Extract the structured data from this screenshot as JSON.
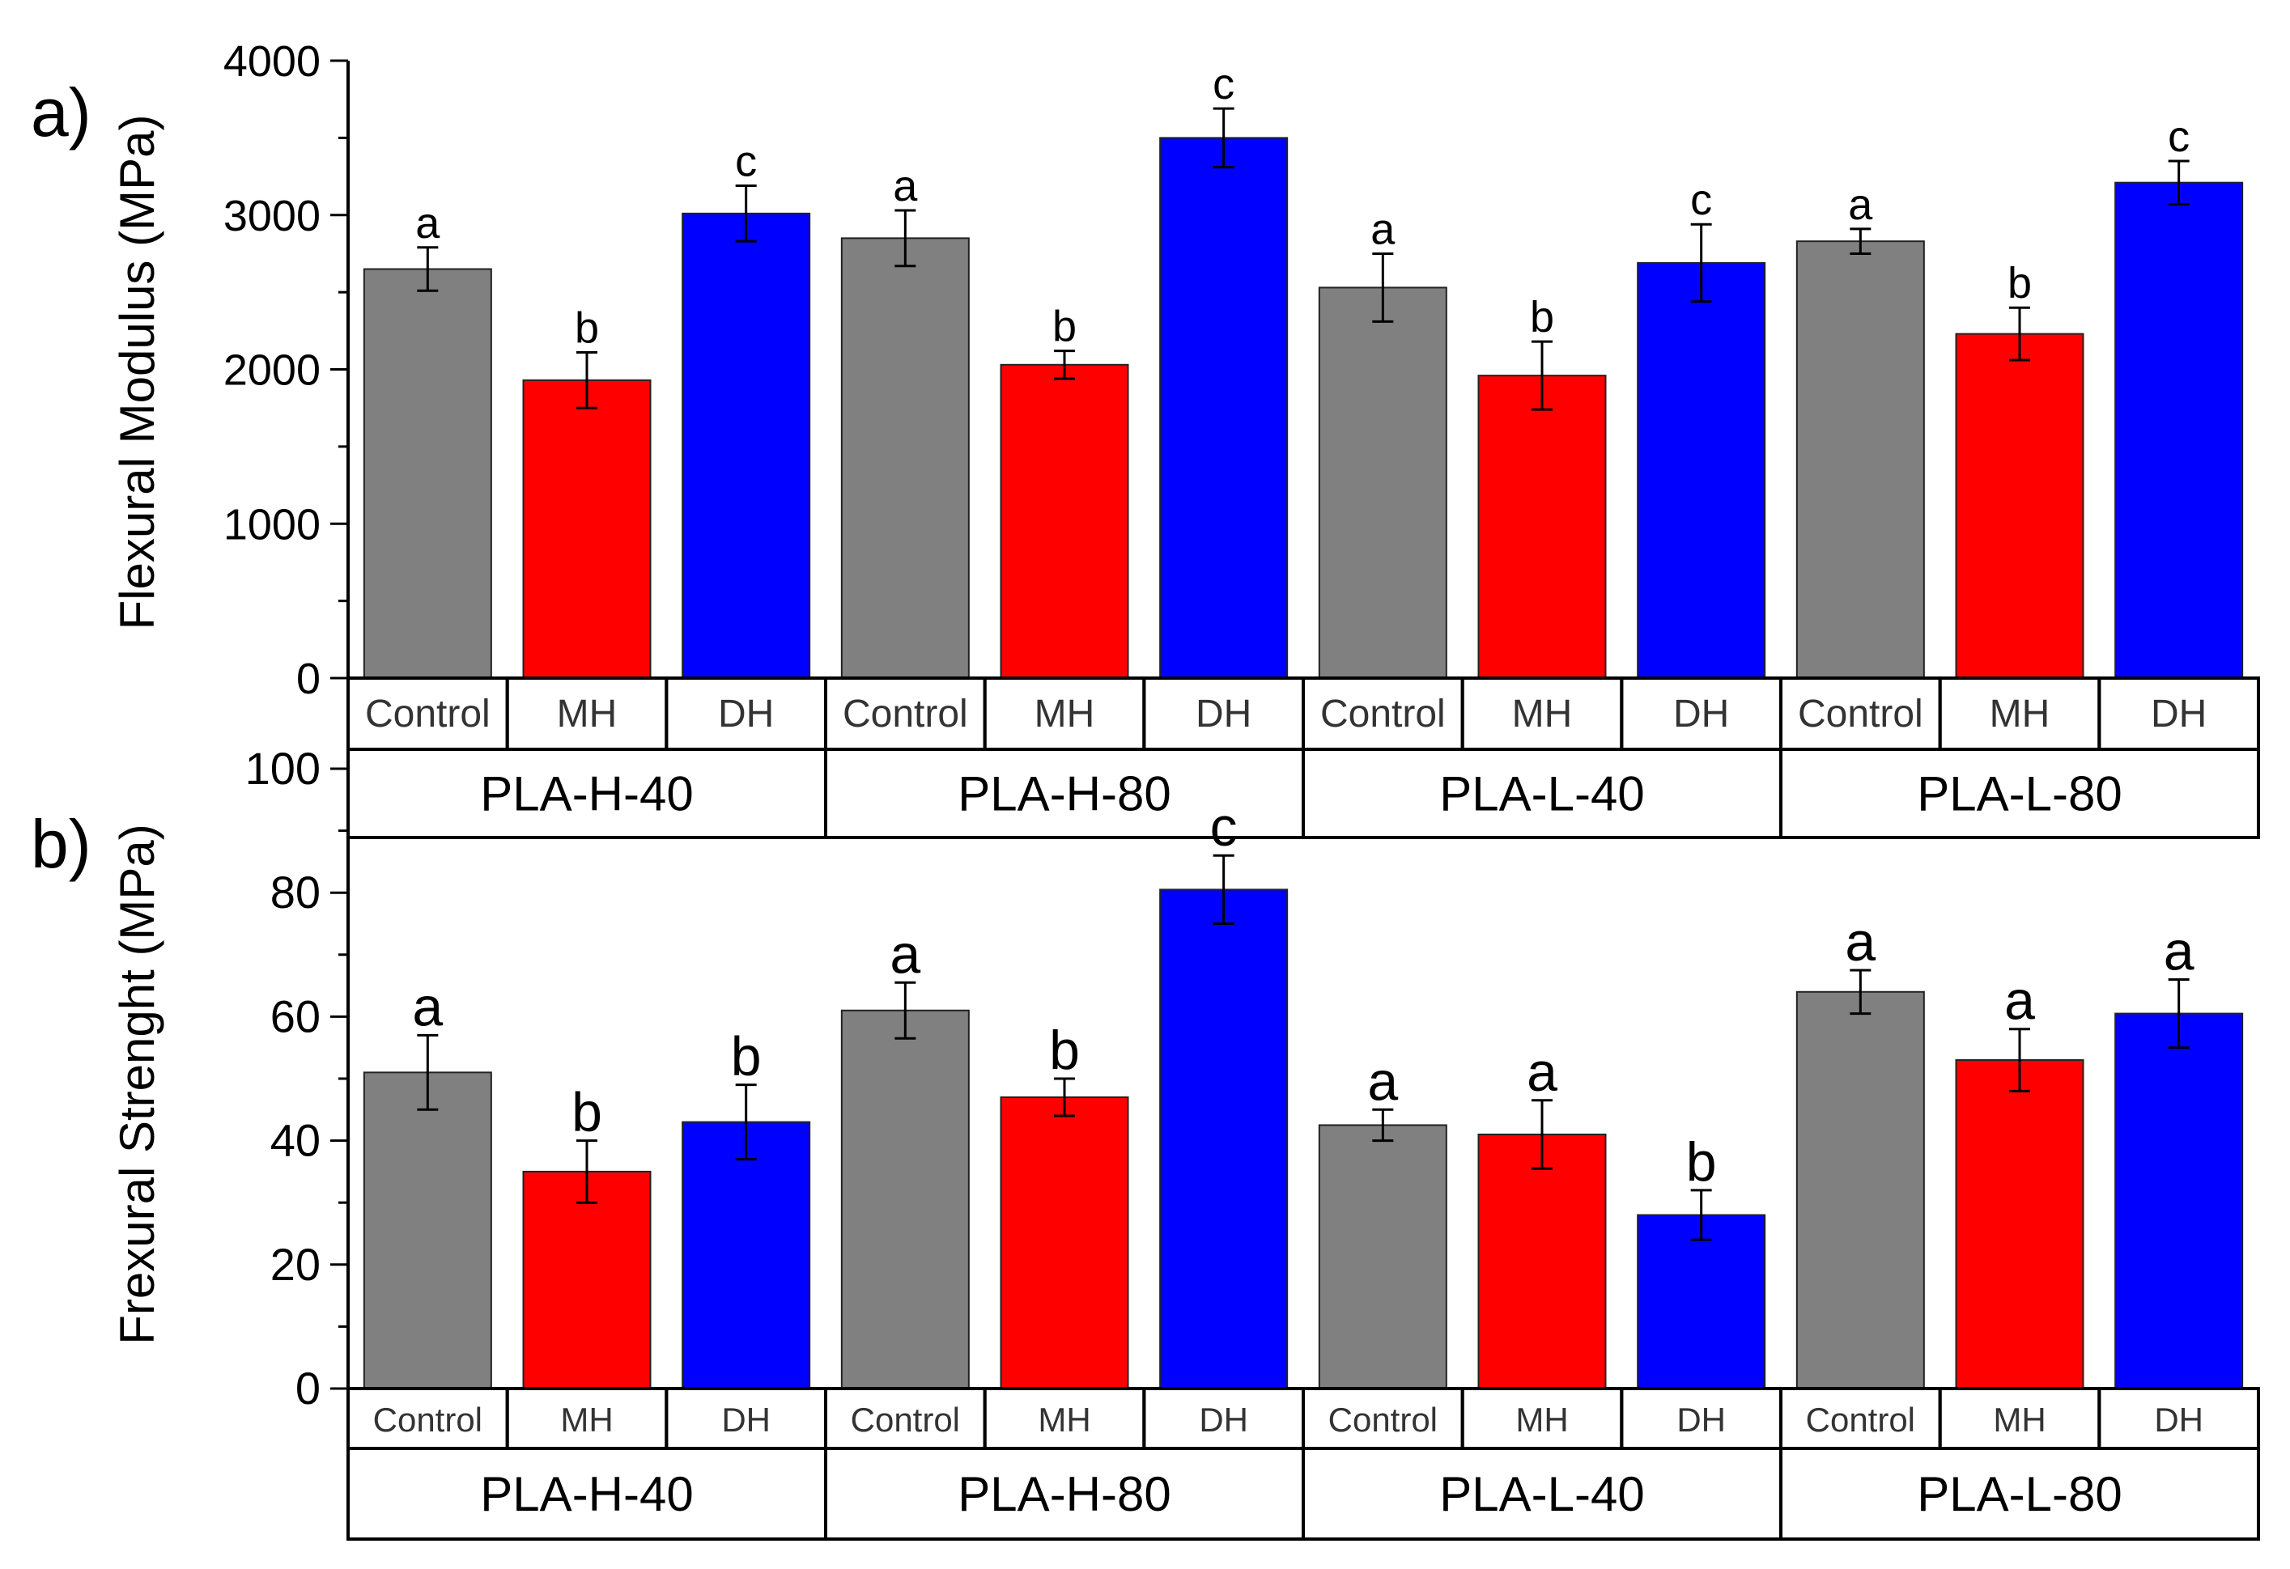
{
  "chart_data": [
    {
      "panel": "a)",
      "type": "bar",
      "ylabel": "Flexural Modulus (MPa)",
      "ylim": [
        0,
        4000
      ],
      "yticks": [
        0,
        1000,
        2000,
        3000,
        4000
      ],
      "groups": [
        "PLA-H-40",
        "PLA-H-80",
        "PLA-L-40",
        "PLA-L-80"
      ],
      "categories": [
        "Control",
        "MH",
        "DH"
      ],
      "colors": {
        "Control": "#808080",
        "MH": "#ff0000",
        "DH": "#0000ff"
      },
      "series": [
        {
          "name": "PLA-H-40",
          "values": [
            2650,
            1930,
            3010
          ],
          "errors": [
            140,
            180,
            180
          ],
          "labels": [
            "a",
            "b",
            "c"
          ]
        },
        {
          "name": "PLA-H-80",
          "values": [
            2850,
            2030,
            3500
          ],
          "errors": [
            180,
            90,
            190
          ],
          "labels": [
            "a",
            "b",
            "c"
          ]
        },
        {
          "name": "PLA-L-40",
          "values": [
            2530,
            1960,
            2690
          ],
          "errors": [
            220,
            220,
            250
          ],
          "labels": [
            "a",
            "b",
            "c"
          ]
        },
        {
          "name": "PLA-L-80",
          "values": [
            2830,
            2230,
            3210
          ],
          "errors": [
            80,
            170,
            140
          ],
          "labels": [
            "a",
            "b",
            "c"
          ]
        }
      ]
    },
    {
      "panel": "b)",
      "type": "bar",
      "ylabel": "Frexural Strenght (MPa)",
      "ylim": [
        0,
        100
      ],
      "yticks": [
        0,
        20,
        40,
        60,
        80,
        100
      ],
      "groups": [
        "PLA-H-40",
        "PLA-H-80",
        "PLA-L-40",
        "PLA-L-80"
      ],
      "categories": [
        "Control",
        "MH",
        "DH"
      ],
      "colors": {
        "Control": "#808080",
        "MH": "#ff0000",
        "DH": "#0000ff"
      },
      "series": [
        {
          "name": "PLA-H-40",
          "values": [
            51,
            35,
            43
          ],
          "errors": [
            6,
            5,
            6
          ],
          "labels": [
            "a",
            "b",
            "b"
          ]
        },
        {
          "name": "PLA-H-80",
          "values": [
            61,
            47,
            80.5
          ],
          "errors": [
            4.5,
            3,
            5.5
          ],
          "labels": [
            "a",
            "b",
            "c"
          ]
        },
        {
          "name": "PLA-L-40",
          "values": [
            42.5,
            41,
            28
          ],
          "errors": [
            2.5,
            5.5,
            4
          ],
          "labels": [
            "a",
            "a",
            "b"
          ]
        },
        {
          "name": "PLA-L-80",
          "values": [
            64,
            53,
            60.5
          ],
          "errors": [
            3.5,
            5,
            5.5
          ],
          "labels": [
            "a",
            "a",
            "a"
          ]
        }
      ]
    }
  ]
}
